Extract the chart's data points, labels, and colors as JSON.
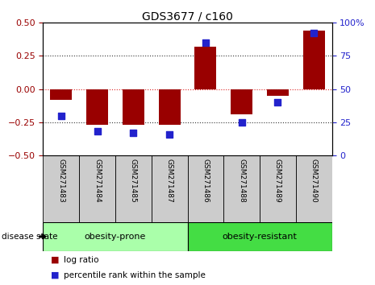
{
  "title": "GDS3677 / c160",
  "samples": [
    "GSM271483",
    "GSM271484",
    "GSM271485",
    "GSM271487",
    "GSM271486",
    "GSM271488",
    "GSM271489",
    "GSM271490"
  ],
  "log_ratio": [
    -0.08,
    -0.27,
    -0.27,
    -0.27,
    0.32,
    -0.19,
    -0.05,
    0.44
  ],
  "percentile_rank": [
    30,
    18,
    17,
    16,
    85,
    25,
    40,
    92
  ],
  "ylim_left": [
    -0.5,
    0.5
  ],
  "ylim_right": [
    0,
    100
  ],
  "yticks_left": [
    -0.5,
    -0.25,
    0,
    0.25,
    0.5
  ],
  "yticks_right": [
    0,
    25,
    50,
    75,
    100
  ],
  "bar_color": "#990000",
  "dot_color": "#2222cc",
  "bg_color": "#cccccc",
  "plot_bg": "#ffffff",
  "zero_line_color": "#dd2222",
  "dotted_line_color": "#333333",
  "group1_label": "obesity-prone",
  "group2_label": "obesity-resistant",
  "group1_color": "#aaffaa",
  "group2_color": "#44dd44",
  "group1_indices": [
    0,
    1,
    2,
    3
  ],
  "group2_indices": [
    4,
    5,
    6,
    7
  ],
  "disease_state_label": "disease state",
  "legend_log_ratio": "log ratio",
  "legend_percentile": "percentile rank within the sample",
  "bar_width": 0.6,
  "dot_size": 30
}
